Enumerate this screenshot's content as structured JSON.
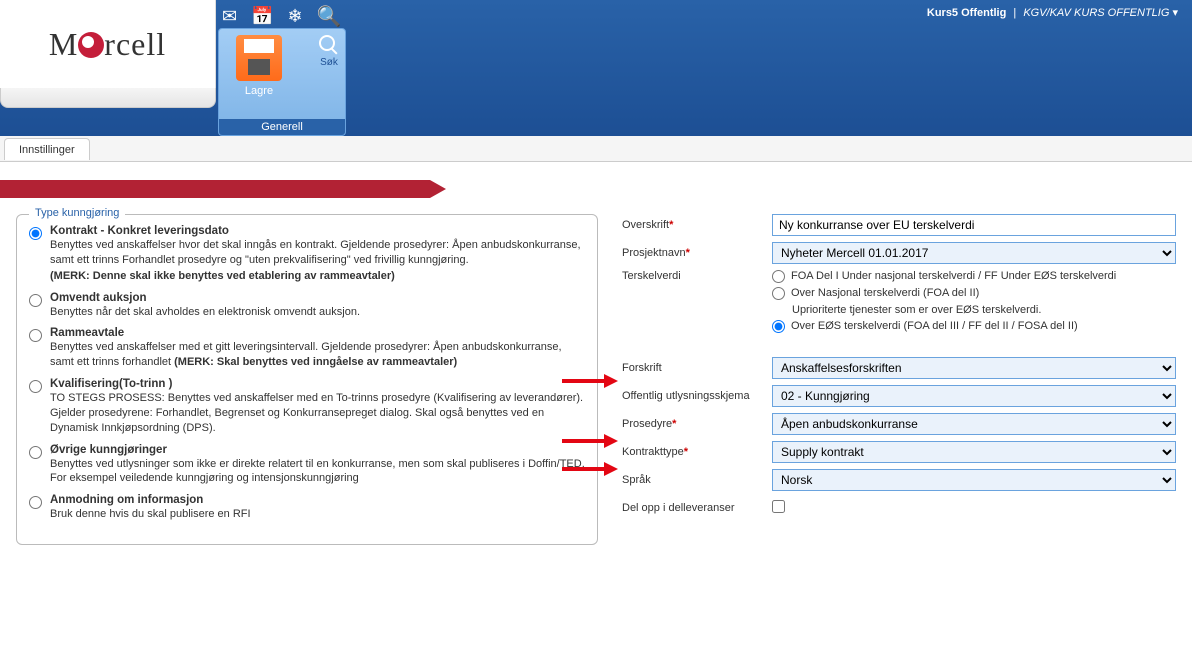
{
  "top": {
    "user": "Kurs5 Offentlig",
    "org": "KGV/KAV KURS OFFENTLIG",
    "logo": "Mercell"
  },
  "ribbon": {
    "save_label": "Lagre",
    "search_label": "Søk",
    "group_title": "Generell"
  },
  "tab": {
    "label": "Innstillinger"
  },
  "leftbox": {
    "legend": "Type kunngjøring"
  },
  "options": [
    {
      "title": "Kontrakt - Konkret leveringsdato",
      "desc": "Benyttes ved anskaffelser hvor det skal inngås en kontrakt. Gjeldende prosedyrer: Åpen anbudskonkurranse, samt ett trinns Forhandlet prosedyre og \"uten prekvalifisering\" ved frivillig kunngjøring.",
      "note": "(MERK: Denne skal ikke benyttes ved etablering av rammeavtaler)",
      "checked": true
    },
    {
      "title": "Omvendt auksjon",
      "desc": "Benyttes når det skal avholdes en elektronisk omvendt auksjon.",
      "note": "",
      "checked": false
    },
    {
      "title": "Rammeavtale",
      "desc": "Benyttes ved anskaffelser med et gitt leveringsintervall. Gjeldende prosedyrer: Åpen anbudskonkurranse, samt ett trinns forhandlet ",
      "note": "(MERK: Skal benyttes ved inngåelse av rammeavtaler)",
      "checked": false
    },
    {
      "title": "Kvalifisering(To-trinn )",
      "desc": "TO STEGS PROSESS: Benyttes ved anskaffelser med en To-trinns prosedyre (Kvalifisering av leverandører). Gjelder prosedyrene: Forhandlet, Begrenset og Konkurransepreget dialog. Skal også benyttes ved en Dynamisk Innkjøpsordning (DPS).",
      "note": "",
      "checked": false
    },
    {
      "title": "Øvrige kunngjøringer",
      "desc": "Benyttes ved utlysninger som ikke er direkte relatert til en konkurranse, men som skal publiseres i Doffin/TED. For eksempel veiledende kunngjøring og intensjonskunngjøring",
      "note": "",
      "checked": false
    },
    {
      "title": "Anmodning om informasjon",
      "desc": "Bruk denne hvis du skal publisere en RFI",
      "note": "",
      "checked": false
    }
  ],
  "form": {
    "overskrift_label": "Overskrift",
    "overskrift_value": "Ny konkurranse over EU terskelverdi",
    "prosjekt_label": "Prosjektnavn",
    "prosjekt_value": "Nyheter Mercell 01.01.2017",
    "terskel_label": "Terskelverdi",
    "terskel_opts": [
      "FOA Del I Under nasjonal terskelverdi / FF Under EØS terskelverdi",
      "Over Nasjonal terskelverdi (FOA del II)",
      "Over EØS terskelverdi (FOA del III / FF del II / FOSA del II)"
    ],
    "terskel_sub": "Uprioriterte tjenester som er over EØS terskelverdi.",
    "terskel_checked": 2,
    "forskrift_label": "Forskrift",
    "forskrift_value": "Anskaffelsesforskriften",
    "skjema_label": "Offentlig utlysningsskjema",
    "skjema_value": "02 - Kunngjøring",
    "prosedyre_label": "Prosedyre",
    "prosedyre_value": "Åpen anbudskonkurranse",
    "kontrakttype_label": "Kontrakttype",
    "kontrakttype_value": "Supply kontrakt",
    "sprak_label": "Språk",
    "sprak_value": "Norsk",
    "delopp_label": "Del opp i delleveranser"
  }
}
